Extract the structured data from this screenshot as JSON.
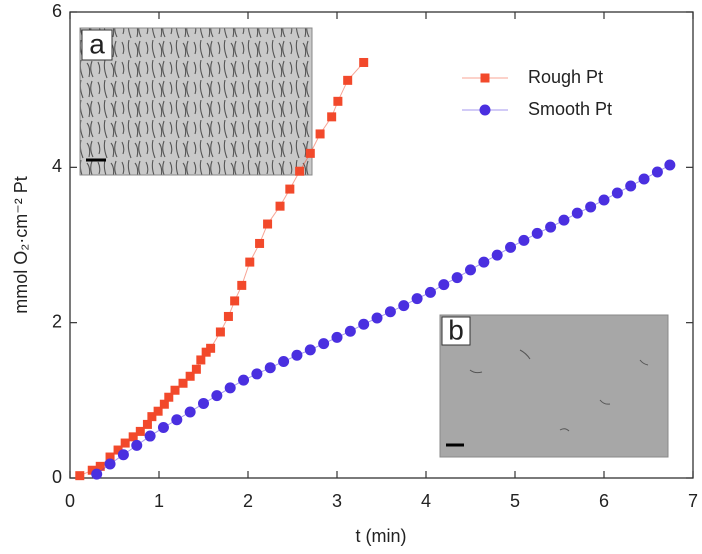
{
  "chart_data": {
    "type": "scatter",
    "xlabel": "t (min)",
    "ylabel": "mmol O₂·cm⁻² Pt",
    "xlim": [
      0,
      7
    ],
    "xticks": [
      0,
      1,
      2,
      3,
      4,
      5,
      6,
      7
    ],
    "ylim": [
      0,
      6
    ],
    "yticks": [
      0,
      2,
      4,
      6
    ],
    "legend": "upper right",
    "annotations": [
      "a",
      "b"
    ],
    "series": [
      {
        "name": "Rough Pt",
        "color": "#f2492b",
        "marker": "square",
        "x": [
          0.11,
          0.25,
          0.34,
          0.45,
          0.54,
          0.62,
          0.71,
          0.79,
          0.87,
          0.92,
          0.99,
          1.06,
          1.11,
          1.18,
          1.27,
          1.35,
          1.42,
          1.47,
          1.53,
          1.58,
          1.69,
          1.78,
          1.85,
          1.93,
          2.02,
          2.13,
          2.22,
          2.36,
          2.47,
          2.58,
          2.7,
          2.81,
          2.94,
          3.01,
          3.12,
          3.3
        ],
        "values": [
          0.03,
          0.1,
          0.15,
          0.27,
          0.36,
          0.45,
          0.53,
          0.6,
          0.69,
          0.79,
          0.86,
          0.95,
          1.04,
          1.13,
          1.22,
          1.31,
          1.4,
          1.52,
          1.62,
          1.67,
          1.88,
          2.08,
          2.28,
          2.48,
          2.78,
          3.02,
          3.27,
          3.5,
          3.72,
          3.95,
          4.18,
          4.43,
          4.65,
          4.85,
          5.12,
          5.35
        ]
      },
      {
        "name": "Smooth Pt",
        "color": "#4a2fe0",
        "marker": "circle",
        "x": [
          0.3,
          0.45,
          0.6,
          0.75,
          0.9,
          1.05,
          1.2,
          1.35,
          1.5,
          1.65,
          1.8,
          1.95,
          2.1,
          2.25,
          2.4,
          2.55,
          2.7,
          2.85,
          3.0,
          3.15,
          3.3,
          3.45,
          3.6,
          3.75,
          3.9,
          4.05,
          4.2,
          4.35,
          4.5,
          4.65,
          4.8,
          4.95,
          5.1,
          5.25,
          5.4,
          5.55,
          5.7,
          5.85,
          6.0,
          6.15,
          6.3,
          6.45,
          6.6,
          6.74
        ],
        "values": [
          0.05,
          0.18,
          0.3,
          0.42,
          0.54,
          0.65,
          0.75,
          0.85,
          0.96,
          1.06,
          1.16,
          1.26,
          1.34,
          1.42,
          1.5,
          1.58,
          1.65,
          1.73,
          1.81,
          1.89,
          1.98,
          2.06,
          2.14,
          2.22,
          2.31,
          2.39,
          2.49,
          2.58,
          2.68,
          2.78,
          2.87,
          2.97,
          3.06,
          3.15,
          3.23,
          3.32,
          3.41,
          3.49,
          3.58,
          3.67,
          3.76,
          3.85,
          3.94,
          4.03
        ]
      }
    ]
  }
}
